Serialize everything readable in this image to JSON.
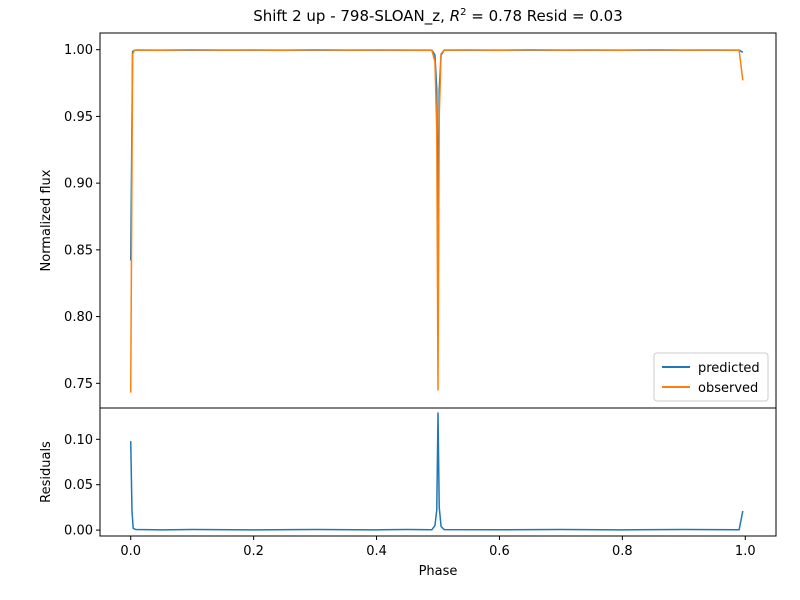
{
  "chart_data": {
    "type": "line",
    "title_prefix": "Shift 2 up - 798-SLOAN_z, ",
    "title_r2_symbol": "R",
    "title_r2_exp": "2",
    "title_suffix": " = 0.78 Resid = 0.03",
    "panels": [
      {
        "id": "flux",
        "xlabel": "",
        "ylabel": "Normalized flux",
        "xlim": [
          -0.05,
          1.05
        ],
        "ylim": [
          0.7315,
          1.0125
        ],
        "yticks": [
          1.0,
          0.95,
          0.9,
          0.85,
          0.8,
          0.75
        ],
        "ytick_labels": [
          "1.00",
          "0.95",
          "0.90",
          "0.85",
          "0.80",
          "0.75"
        ],
        "legend_position": "lower-right",
        "series": [
          {
            "name": "predicted",
            "color": "#1f77b4",
            "x": [
              0.0,
              0.003,
              0.006,
              0.01,
              0.1,
              0.2,
              0.3,
              0.4,
              0.49,
              0.495,
              0.498,
              0.5,
              0.502,
              0.505,
              0.51,
              0.6,
              0.7,
              0.8,
              0.9,
              0.99,
              0.996
            ],
            "y": [
              0.842,
              0.9985,
              0.9996,
              0.9997,
              0.9997,
              0.9997,
              0.9997,
              0.9997,
              0.9997,
              0.996,
              0.97,
              0.872,
              0.97,
              0.996,
              0.9997,
              0.9997,
              0.9997,
              0.9997,
              0.9997,
              0.9997,
              0.998
            ]
          },
          {
            "name": "observed",
            "color": "#ff7f0e",
            "x": [
              0.0,
              0.003,
              0.006,
              0.01,
              0.05,
              0.1,
              0.15,
              0.2,
              0.25,
              0.3,
              0.35,
              0.4,
              0.45,
              0.49,
              0.495,
              0.498,
              0.5,
              0.502,
              0.505,
              0.51,
              0.55,
              0.6,
              0.65,
              0.7,
              0.75,
              0.8,
              0.85,
              0.9,
              0.95,
              0.99,
              0.996
            ],
            "y": [
              0.743,
              0.9965,
              0.9995,
              0.9998,
              0.9996,
              0.9999,
              0.9997,
              0.9998,
              0.9996,
              0.9999,
              0.9997,
              0.9998,
              0.9997,
              0.9996,
              0.991,
              0.94,
              0.745,
              0.95,
              0.997,
              0.9997,
              0.9998,
              0.9996,
              0.9999,
              0.9997,
              0.9998,
              0.9996,
              0.9999,
              0.9997,
              0.9998,
              0.9996,
              0.977
            ]
          }
        ]
      },
      {
        "id": "residuals",
        "xlabel": "Phase",
        "ylabel": "Residuals",
        "xlim": [
          -0.05,
          1.05
        ],
        "ylim": [
          -0.0065,
          0.1345
        ],
        "yticks": [
          0.1,
          0.05,
          0.0
        ],
        "ytick_labels": [
          "0.10",
          "0.05",
          "0.00"
        ],
        "xticks": [
          0.0,
          0.2,
          0.4,
          0.6,
          0.8,
          1.0
        ],
        "xtick_labels": [
          "0.0",
          "0.2",
          "0.4",
          "0.6",
          "0.8",
          "1.0"
        ],
        "series": [
          {
            "name": "",
            "color": "#1f77b4",
            "x": [
              0.0,
              0.002,
              0.004,
              0.008,
              0.05,
              0.1,
              0.2,
              0.3,
              0.4,
              0.45,
              0.49,
              0.495,
              0.498,
              0.5,
              0.502,
              0.505,
              0.51,
              0.6,
              0.7,
              0.8,
              0.9,
              0.99,
              0.996
            ],
            "y": [
              0.098,
              0.022,
              0.002,
              0.0006,
              0.0003,
              0.0006,
              0.0003,
              0.0006,
              0.0003,
              0.0006,
              0.0004,
              0.005,
              0.022,
              0.129,
              0.025,
              0.004,
              0.0005,
              0.0004,
              0.0006,
              0.0003,
              0.0006,
              0.0004,
              0.021
            ]
          }
        ]
      }
    ]
  }
}
